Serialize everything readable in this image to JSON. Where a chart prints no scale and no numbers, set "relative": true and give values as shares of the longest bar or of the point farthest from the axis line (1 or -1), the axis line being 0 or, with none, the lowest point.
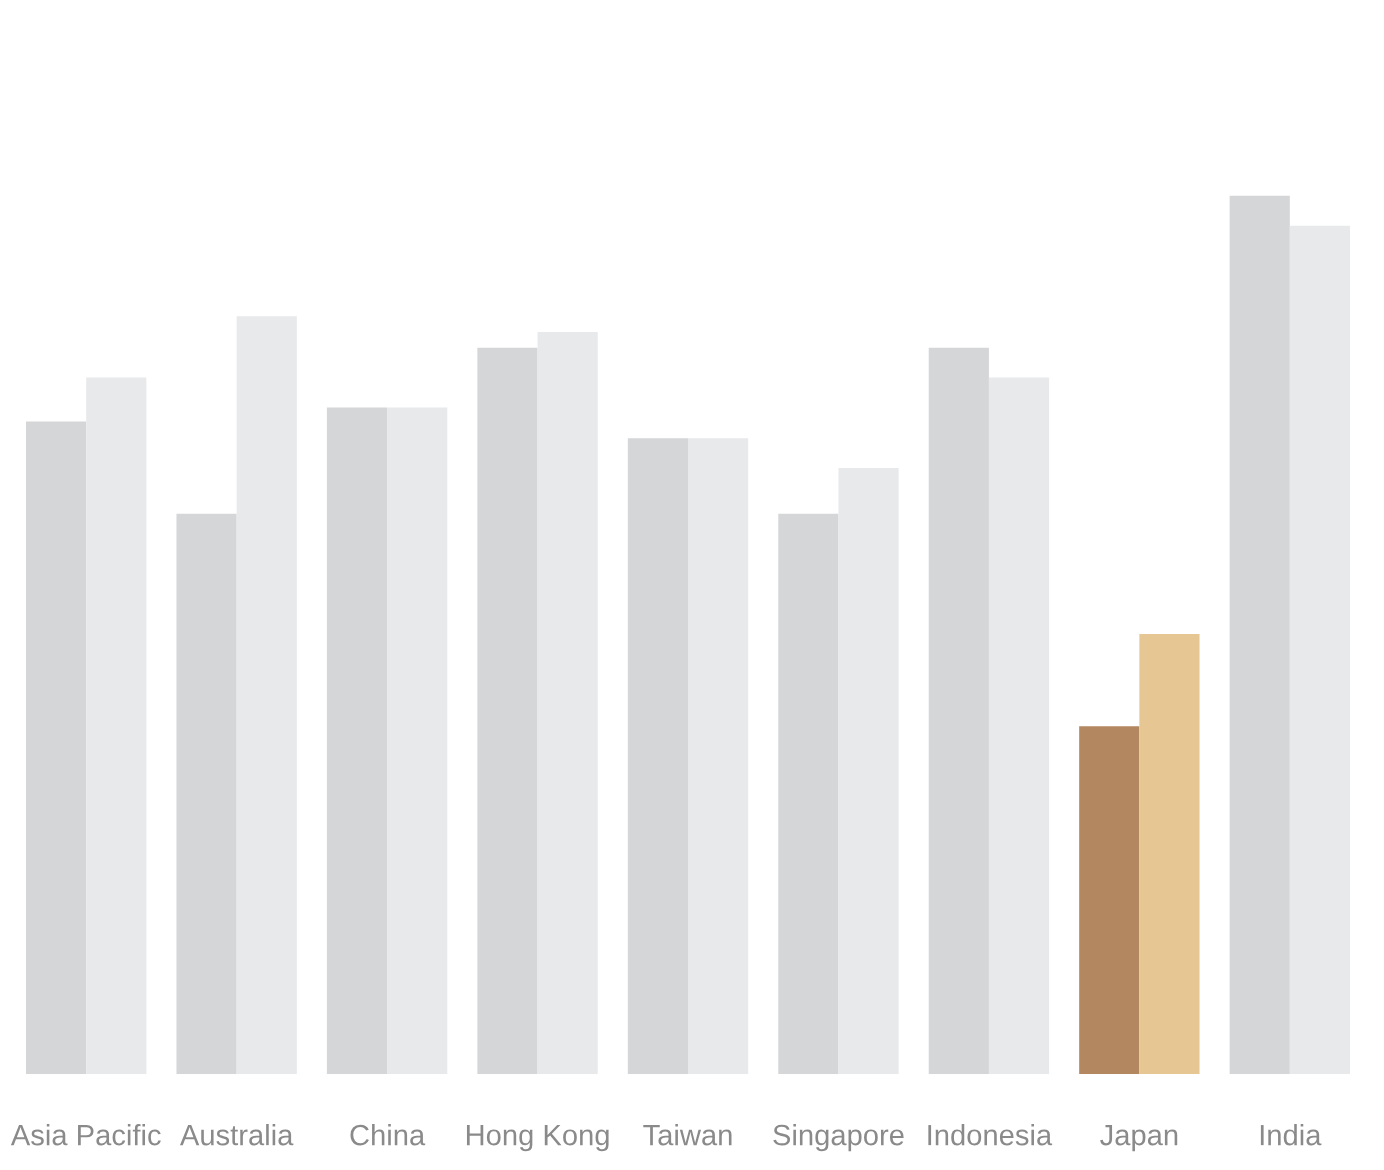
{
  "chart_data": {
    "type": "bar",
    "relative": true,
    "categories": [
      "Asia Pacific",
      "Australia",
      "China",
      "Hong Kong",
      "Taiwan",
      "Singapore",
      "Indonesia",
      "Japan",
      "India"
    ],
    "series": [
      {
        "colors": [
          "#d5d6d8",
          "#d5d6d8",
          "#d5d6d8",
          "#d5d6d8",
          "#d5d6d8",
          "#d5d6d8",
          "#d5d6d8",
          "#b3875f",
          "#d5d6d8"
        ],
        "values": [
          0.743,
          0.638,
          0.759,
          0.827,
          0.724,
          0.638,
          0.827,
          0.396,
          1
        ]
      },
      {
        "colors": [
          "#e8e9eb",
          "#e8e9eb",
          "#e8e9eb",
          "#e8e9eb",
          "#e8e9eb",
          "#e8e9eb",
          "#e8e9eb",
          "#e6c794",
          "#e8e9eb"
        ],
        "values": [
          0.793,
          0.863,
          0.759,
          0.845,
          0.724,
          0.69,
          0.793,
          0.501,
          0.966
        ]
      }
    ],
    "grid": false,
    "legend": false
  }
}
